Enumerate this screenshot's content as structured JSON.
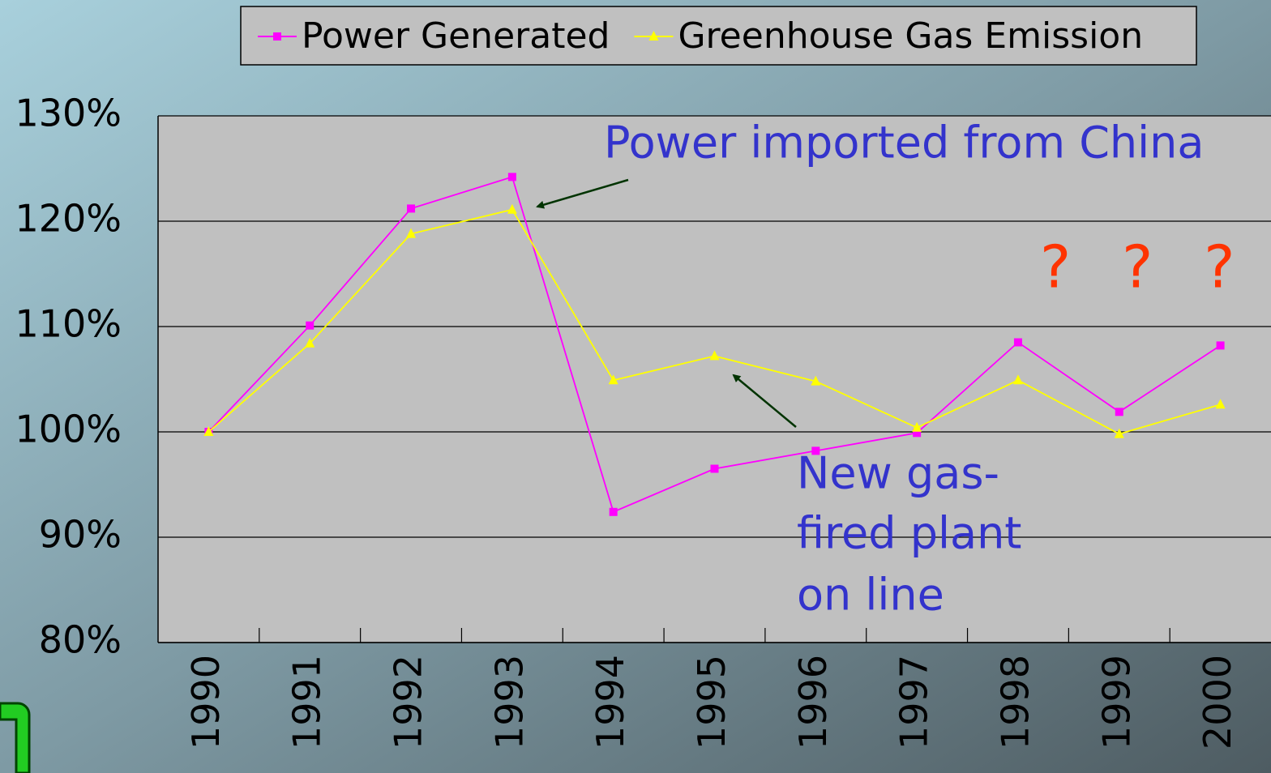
{
  "chart_data": {
    "type": "line",
    "categories": [
      "1990",
      "1991",
      "1992",
      "1993",
      "1994",
      "1995",
      "1996",
      "1997",
      "1998",
      "1999",
      "2000"
    ],
    "series": [
      {
        "name": "Power Generated",
        "color": "#ff00ff",
        "marker": "square",
        "values": [
          100,
          110.1,
          121.2,
          124.2,
          92.4,
          96.5,
          98.2,
          99.9,
          108.5,
          101.9,
          108.2
        ]
      },
      {
        "name": "Greenhouse Gas Emission",
        "color": "#ffff00",
        "marker": "triangle",
        "values": [
          100,
          108.4,
          118.8,
          121.1,
          104.9,
          107.2,
          104.8,
          100.4,
          104.9,
          99.8,
          102.6
        ]
      }
    ],
    "ylim": [
      80,
      130
    ],
    "yticks": [
      {
        "value": 80,
        "label": "80%"
      },
      {
        "value": 90,
        "label": "90%"
      },
      {
        "value": 100,
        "label": "100%"
      },
      {
        "value": 110,
        "label": "110%"
      },
      {
        "value": 120,
        "label": "120%"
      },
      {
        "value": 130,
        "label": "130%"
      }
    ],
    "grid": true,
    "legend": "top",
    "annotations": [
      [
        "Power imported from China"
      ],
      [
        "? ? ?"
      ],
      [
        "New gas-",
        "fired plant",
        "on line"
      ]
    ]
  }
}
